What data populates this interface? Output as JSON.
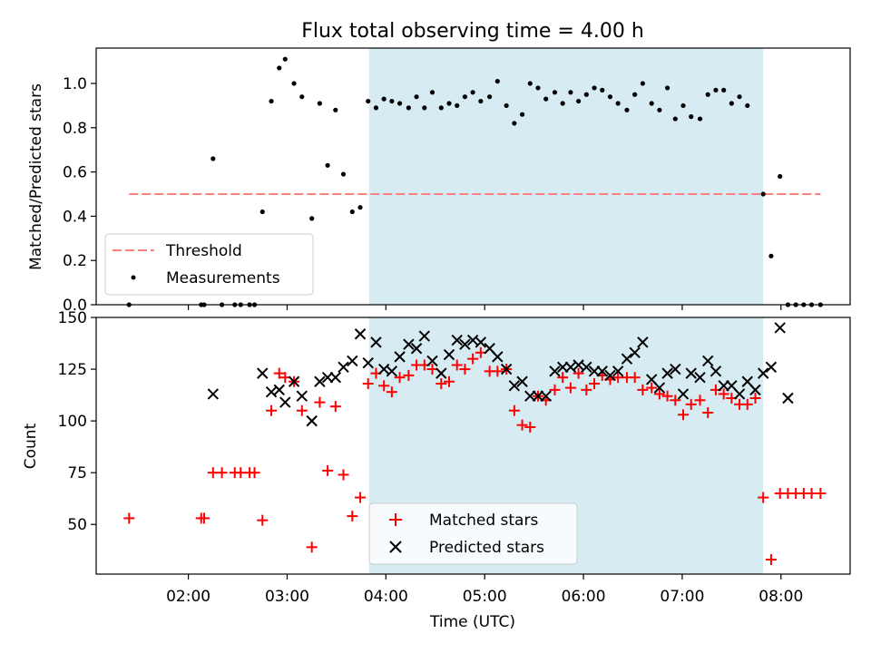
{
  "figure": {
    "title": "Flux total observing time = 4.00 h"
  },
  "chart_data": [
    {
      "type": "scatter",
      "ylabel": "Matched/Predicted stars",
      "xlim": [
        1.0667,
        8.7
      ],
      "ylim": [
        0,
        1.16
      ],
      "xticks": [
        2,
        3,
        4,
        5,
        6,
        7,
        8
      ],
      "yticks": [
        0.0,
        0.2,
        0.4,
        0.6,
        0.8,
        1.0
      ],
      "shaded_span": [
        3.83,
        7.82
      ],
      "threshold": {
        "name": "Threshold",
        "value": 0.5,
        "x": [
          1.4,
          8.4
        ],
        "color": "#ff7f7f",
        "style": "dashed"
      },
      "legend": {
        "position": "lower left",
        "entries": [
          "Threshold",
          "Measurements"
        ]
      },
      "series": [
        {
          "name": "Measurements",
          "color": "#000000",
          "marker": "dot",
          "points": [
            [
              1.4,
              0.0
            ],
            [
              2.13,
              0.0
            ],
            [
              2.16,
              0.0
            ],
            [
              2.25,
              0.66
            ],
            [
              2.34,
              0.0
            ],
            [
              2.47,
              0.0
            ],
            [
              2.53,
              0.0
            ],
            [
              2.62,
              0.0
            ],
            [
              2.67,
              0.0
            ],
            [
              2.75,
              0.42
            ],
            [
              2.84,
              0.92
            ],
            [
              2.92,
              1.07
            ],
            [
              2.98,
              1.11
            ],
            [
              3.07,
              1.0
            ],
            [
              3.15,
              0.94
            ],
            [
              3.25,
              0.39
            ],
            [
              3.33,
              0.91
            ],
            [
              3.41,
              0.63
            ],
            [
              3.49,
              0.88
            ],
            [
              3.57,
              0.59
            ],
            [
              3.66,
              0.42
            ],
            [
              3.74,
              0.44
            ],
            [
              3.82,
              0.92
            ],
            [
              3.9,
              0.89
            ],
            [
              3.98,
              0.93
            ],
            [
              4.06,
              0.92
            ],
            [
              4.14,
              0.91
            ],
            [
              4.23,
              0.89
            ],
            [
              4.31,
              0.94
            ],
            [
              4.39,
              0.89
            ],
            [
              4.47,
              0.96
            ],
            [
              4.56,
              0.89
            ],
            [
              4.64,
              0.91
            ],
            [
              4.72,
              0.9
            ],
            [
              4.8,
              0.94
            ],
            [
              4.88,
              0.96
            ],
            [
              4.96,
              0.92
            ],
            [
              5.05,
              0.94
            ],
            [
              5.13,
              1.01
            ],
            [
              5.22,
              0.9
            ],
            [
              5.3,
              0.82
            ],
            [
              5.38,
              0.86
            ],
            [
              5.46,
              1.0
            ],
            [
              5.54,
              0.98
            ],
            [
              5.62,
              0.93
            ],
            [
              5.71,
              0.96
            ],
            [
              5.79,
              0.91
            ],
            [
              5.87,
              0.96
            ],
            [
              5.95,
              0.92
            ],
            [
              6.03,
              0.95
            ],
            [
              6.11,
              0.98
            ],
            [
              6.19,
              0.97
            ],
            [
              6.27,
              0.94
            ],
            [
              6.35,
              0.91
            ],
            [
              6.44,
              0.88
            ],
            [
              6.52,
              0.95
            ],
            [
              6.6,
              1.0
            ],
            [
              6.69,
              0.91
            ],
            [
              6.77,
              0.88
            ],
            [
              6.85,
              0.98
            ],
            [
              6.93,
              0.84
            ],
            [
              7.01,
              0.9
            ],
            [
              7.09,
              0.85
            ],
            [
              7.18,
              0.84
            ],
            [
              7.26,
              0.95
            ],
            [
              7.34,
              0.97
            ],
            [
              7.42,
              0.97
            ],
            [
              7.5,
              0.91
            ],
            [
              7.58,
              0.94
            ],
            [
              7.66,
              0.9
            ],
            [
              7.82,
              0.5
            ],
            [
              7.9,
              0.22
            ],
            [
              7.99,
              0.58
            ],
            [
              8.07,
              0.0
            ],
            [
              8.15,
              0.0
            ],
            [
              8.23,
              0.0
            ],
            [
              8.31,
              0.0
            ],
            [
              8.4,
              0.0
            ]
          ]
        }
      ]
    },
    {
      "type": "scatter",
      "xlabel": "Time (UTC)",
      "ylabel": "Count",
      "xlim": [
        1.0667,
        8.7
      ],
      "ylim": [
        26.0,
        150.0
      ],
      "xticks": [
        2,
        3,
        4,
        5,
        6,
        7,
        8
      ],
      "xticklabels": [
        "02:00",
        "03:00",
        "04:00",
        "05:00",
        "06:00",
        "07:00",
        "08:00"
      ],
      "yticks": [
        50,
        75,
        100,
        125,
        150
      ],
      "shaded_span": [
        3.83,
        7.82
      ],
      "legend": {
        "position": "lower center",
        "entries": [
          "Matched stars",
          "Predicted stars"
        ]
      },
      "series": [
        {
          "name": "Matched stars",
          "color": "#ff0000",
          "marker": "plus",
          "points": [
            [
              1.4,
              53
            ],
            [
              2.13,
              53
            ],
            [
              2.16,
              53
            ],
            [
              2.25,
              75
            ],
            [
              2.34,
              75
            ],
            [
              2.47,
              75
            ],
            [
              2.53,
              75
            ],
            [
              2.62,
              75
            ],
            [
              2.67,
              75
            ],
            [
              2.75,
              52
            ],
            [
              2.84,
              105
            ],
            [
              2.92,
              123
            ],
            [
              2.98,
              121
            ],
            [
              3.07,
              119
            ],
            [
              3.15,
              105
            ],
            [
              3.25,
              39
            ],
            [
              3.33,
              109
            ],
            [
              3.41,
              76
            ],
            [
              3.49,
              107
            ],
            [
              3.57,
              74
            ],
            [
              3.66,
              54
            ],
            [
              3.74,
              63
            ],
            [
              3.82,
              118
            ],
            [
              3.9,
              123
            ],
            [
              3.98,
              117
            ],
            [
              4.06,
              114
            ],
            [
              4.14,
              121
            ],
            [
              4.23,
              122
            ],
            [
              4.31,
              127
            ],
            [
              4.39,
              127
            ],
            [
              4.47,
              125
            ],
            [
              4.56,
              118
            ],
            [
              4.64,
              119
            ],
            [
              4.72,
              127
            ],
            [
              4.8,
              125
            ],
            [
              4.88,
              130
            ],
            [
              4.96,
              133
            ],
            [
              5.05,
              124
            ],
            [
              5.13,
              124
            ],
            [
              5.22,
              125
            ],
            [
              5.3,
              105
            ],
            [
              5.38,
              98
            ],
            [
              5.46,
              97
            ],
            [
              5.54,
              112
            ],
            [
              5.62,
              110
            ],
            [
              5.71,
              115
            ],
            [
              5.79,
              121
            ],
            [
              5.87,
              116
            ],
            [
              5.95,
              123
            ],
            [
              6.03,
              115
            ],
            [
              6.11,
              118
            ],
            [
              6.19,
              122
            ],
            [
              6.27,
              120
            ],
            [
              6.35,
              121
            ],
            [
              6.44,
              121
            ],
            [
              6.52,
              121
            ],
            [
              6.6,
              115
            ],
            [
              6.69,
              116
            ],
            [
              6.77,
              113
            ],
            [
              6.85,
              112
            ],
            [
              6.93,
              110
            ],
            [
              7.01,
              103
            ],
            [
              7.09,
              108
            ],
            [
              7.18,
              110
            ],
            [
              7.26,
              104
            ],
            [
              7.34,
              115
            ],
            [
              7.42,
              113
            ],
            [
              7.5,
              111
            ],
            [
              7.58,
              108
            ],
            [
              7.66,
              108
            ],
            [
              7.74,
              111
            ],
            [
              7.82,
              63
            ],
            [
              7.9,
              33
            ],
            [
              7.99,
              65
            ],
            [
              8.07,
              65
            ],
            [
              8.15,
              65
            ],
            [
              8.23,
              65
            ],
            [
              8.31,
              65
            ],
            [
              8.4,
              65
            ]
          ]
        },
        {
          "name": "Predicted stars",
          "color": "#000000",
          "marker": "x",
          "points": [
            [
              2.25,
              113
            ],
            [
              2.75,
              123
            ],
            [
              2.84,
              114
            ],
            [
              2.92,
              115
            ],
            [
              2.98,
              109
            ],
            [
              3.07,
              119
            ],
            [
              3.15,
              112
            ],
            [
              3.25,
              100
            ],
            [
              3.33,
              119
            ],
            [
              3.41,
              121
            ],
            [
              3.49,
              121
            ],
            [
              3.57,
              126
            ],
            [
              3.66,
              129
            ],
            [
              3.74,
              142
            ],
            [
              3.82,
              128
            ],
            [
              3.9,
              138
            ],
            [
              3.98,
              125
            ],
            [
              4.06,
              124
            ],
            [
              4.14,
              131
            ],
            [
              4.23,
              137
            ],
            [
              4.31,
              135
            ],
            [
              4.39,
              141
            ],
            [
              4.47,
              129
            ],
            [
              4.56,
              123
            ],
            [
              4.64,
              132
            ],
            [
              4.72,
              139
            ],
            [
              4.8,
              137
            ],
            [
              4.88,
              139
            ],
            [
              4.96,
              138
            ],
            [
              5.05,
              135
            ],
            [
              5.13,
              131
            ],
            [
              5.22,
              125
            ],
            [
              5.3,
              117
            ],
            [
              5.38,
              119
            ],
            [
              5.46,
              112
            ],
            [
              5.54,
              112
            ],
            [
              5.62,
              112
            ],
            [
              5.71,
              124
            ],
            [
              5.79,
              126
            ],
            [
              5.87,
              126
            ],
            [
              5.95,
              127
            ],
            [
              6.03,
              126
            ],
            [
              6.11,
              124
            ],
            [
              6.19,
              124
            ],
            [
              6.27,
              122
            ],
            [
              6.35,
              124
            ],
            [
              6.44,
              130
            ],
            [
              6.52,
              133
            ],
            [
              6.6,
              138
            ],
            [
              6.69,
              120
            ],
            [
              6.77,
              116
            ],
            [
              6.85,
              123
            ],
            [
              6.93,
              125
            ],
            [
              7.01,
              113
            ],
            [
              7.09,
              123
            ],
            [
              7.18,
              121
            ],
            [
              7.26,
              129
            ],
            [
              7.34,
              124
            ],
            [
              7.42,
              117
            ],
            [
              7.5,
              117
            ],
            [
              7.58,
              113
            ],
            [
              7.66,
              119
            ],
            [
              7.74,
              115
            ],
            [
              7.82,
              123
            ],
            [
              7.9,
              126
            ],
            [
              7.99,
              145
            ],
            [
              8.07,
              111
            ]
          ]
        }
      ]
    }
  ]
}
